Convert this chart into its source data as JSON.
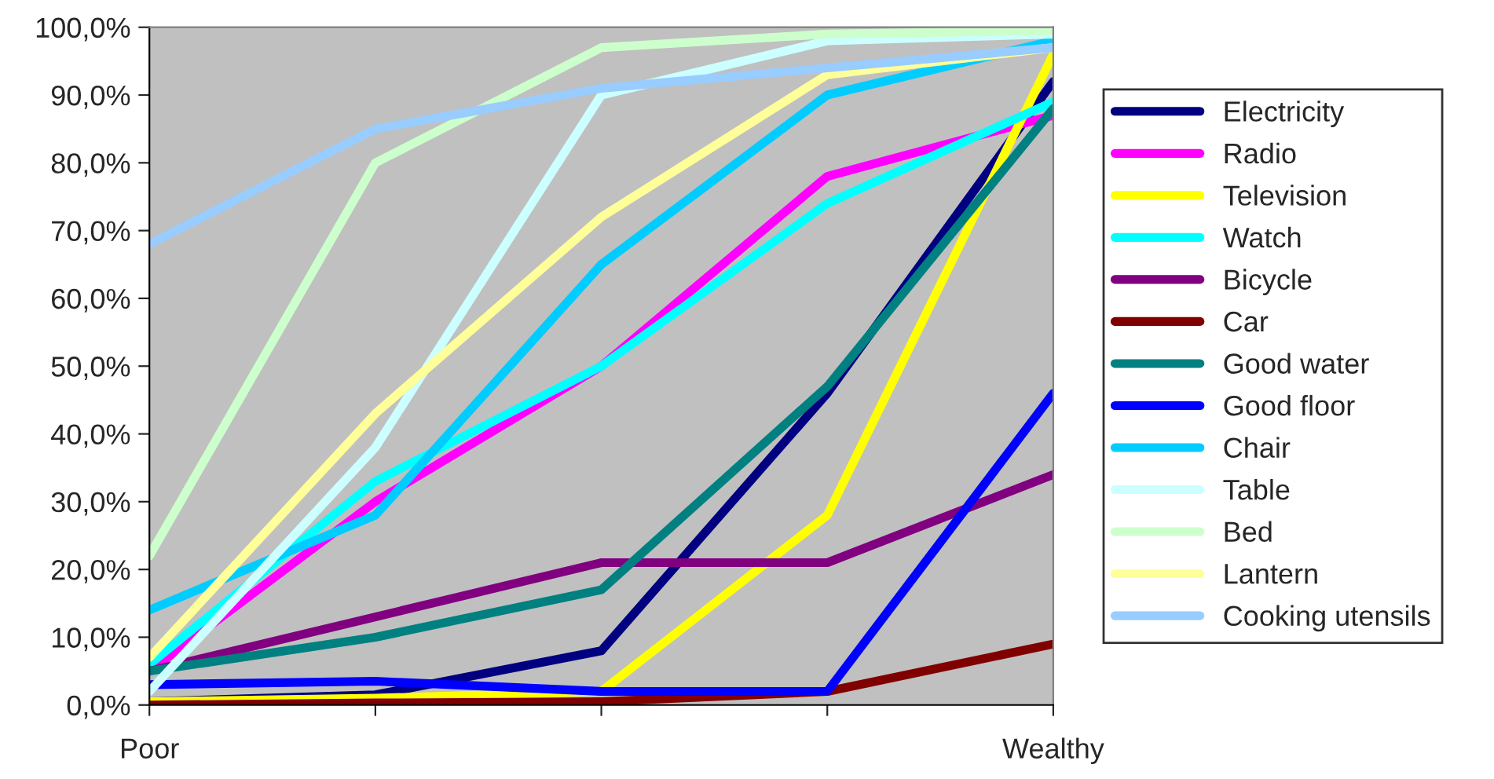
{
  "chart_data": {
    "type": "line",
    "categories": [
      "Poor",
      null,
      null,
      null,
      "Wealthy"
    ],
    "ylim": [
      0,
      100
    ],
    "yticks": [
      {
        "value": 0,
        "label": "0,0%"
      },
      {
        "value": 10,
        "label": "10,0%"
      },
      {
        "value": 20,
        "label": "20,0%"
      },
      {
        "value": 30,
        "label": "30,0%"
      },
      {
        "value": 40,
        "label": "40,0%"
      },
      {
        "value": 50,
        "label": "50,0%"
      },
      {
        "value": 60,
        "label": "60,0%"
      },
      {
        "value": 70,
        "label": "70,0%"
      },
      {
        "value": 80,
        "label": "80,0%"
      },
      {
        "value": 90,
        "label": "90,0%"
      },
      {
        "value": 100,
        "label": "100,0%"
      }
    ],
    "grid": false,
    "legend": "right",
    "marker": "none",
    "line_style": "solid",
    "series": [
      {
        "name": "Electricity",
        "color": "#000080",
        "values": [
          0.5,
          1.5,
          8,
          46,
          92
        ]
      },
      {
        "name": "Radio",
        "color": "#ff00ff",
        "values": [
          5,
          30,
          50,
          78,
          87
        ]
      },
      {
        "name": "Television",
        "color": "#ffff00",
        "values": [
          0.5,
          1,
          2,
          28,
          96
        ]
      },
      {
        "name": "Watch",
        "color": "#00ffff",
        "values": [
          6,
          33,
          50,
          74,
          89
        ]
      },
      {
        "name": "Bicycle",
        "color": "#800080",
        "values": [
          5,
          13,
          21,
          21,
          34
        ]
      },
      {
        "name": "Car",
        "color": "#800000",
        "values": [
          0,
          0.3,
          0.5,
          2,
          9
        ]
      },
      {
        "name": "Good water",
        "color": "#008080",
        "values": [
          5,
          10,
          17,
          47,
          88
        ]
      },
      {
        "name": "Good floor",
        "color": "#0000ff",
        "values": [
          3,
          3.5,
          2,
          2,
          46
        ]
      },
      {
        "name": "Chair",
        "color": "#00ccff",
        "values": [
          14,
          28,
          65,
          90,
          98
        ]
      },
      {
        "name": "Table",
        "color": "#ccffff",
        "values": [
          2,
          38,
          90,
          98,
          99
        ]
      },
      {
        "name": "Bed",
        "color": "#ccffcc",
        "values": [
          22,
          80,
          97,
          99,
          99.5
        ]
      },
      {
        "name": "Lantern",
        "color": "#ffff99",
        "values": [
          7,
          43,
          72,
          93,
          97
        ]
      },
      {
        "name": "Cooking utensils",
        "color": "#99ccff",
        "values": [
          68,
          85,
          91,
          94,
          97
        ]
      }
    ]
  }
}
